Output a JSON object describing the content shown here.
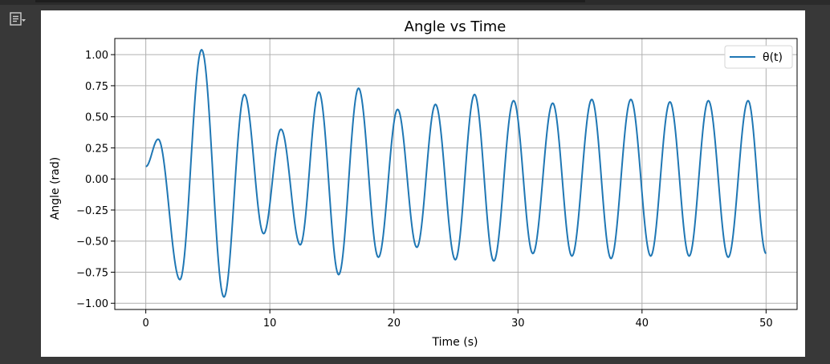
{
  "toolbar": {
    "output_menu_icon": "output-actions-icon"
  },
  "chart_data": {
    "type": "line",
    "title": "Angle vs Time",
    "xlabel": "Time (s)",
    "ylabel": "Angle (rad)",
    "xlim": [
      -2.5,
      52.5
    ],
    "ylim": [
      -1.05,
      1.13
    ],
    "grid": true,
    "legend_position": "top-right",
    "xticks": [
      0,
      10,
      20,
      30,
      40,
      50
    ],
    "xtick_labels": [
      "0",
      "10",
      "20",
      "30",
      "40",
      "50"
    ],
    "yticks": [
      1.0,
      0.75,
      0.5,
      0.25,
      0.0,
      -0.25,
      -0.5,
      -0.75,
      -1.0
    ],
    "ytick_labels": [
      "1.00",
      "0.75",
      "0.50",
      "0.25",
      "0.00",
      "−0.25",
      "−0.50",
      "−0.75",
      "−1.00"
    ],
    "series": [
      {
        "name": "θ(t)",
        "color": "#1f77b4",
        "x": [
          0,
          1.0,
          2.75,
          4.5,
          6.3,
          7.95,
          9.5,
          10.9,
          12.45,
          13.95,
          15.55,
          17.15,
          18.75,
          20.3,
          21.85,
          23.35,
          24.95,
          26.5,
          28.05,
          29.65,
          31.2,
          32.8,
          34.35,
          35.95,
          37.5,
          39.1,
          40.7,
          42.25,
          43.8,
          45.35,
          46.95,
          48.55,
          50
        ],
        "y": [
          0.1,
          0.32,
          -0.81,
          1.04,
          -0.95,
          0.68,
          -0.44,
          0.4,
          -0.53,
          0.7,
          -0.77,
          0.73,
          -0.63,
          0.56,
          -0.55,
          0.6,
          -0.65,
          0.68,
          -0.66,
          0.63,
          -0.6,
          0.61,
          -0.62,
          0.64,
          -0.64,
          0.64,
          -0.62,
          0.62,
          -0.62,
          0.63,
          -0.63,
          0.63,
          -0.6
        ]
      }
    ]
  }
}
